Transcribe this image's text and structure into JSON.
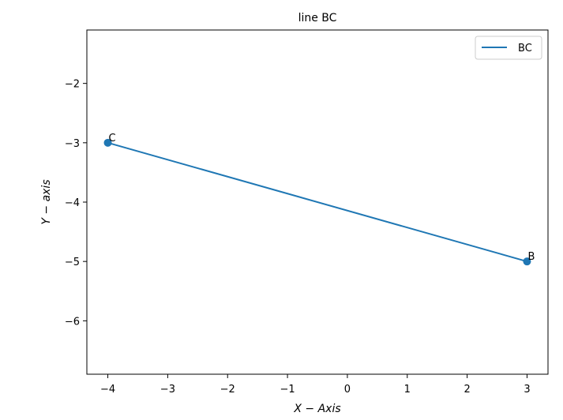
{
  "chart_data": {
    "type": "line",
    "title": "line BC",
    "xlabel": "X − Axis",
    "ylabel": "Y − axis",
    "xlim": [
      -4.35,
      3.35
    ],
    "ylim": [
      -6.9,
      -1.1
    ],
    "xticks": [
      -4,
      -3,
      -2,
      -1,
      0,
      1,
      2,
      3
    ],
    "xtick_labels": [
      "−4",
      "−3",
      "−2",
      "−1",
      "0",
      "1",
      "2",
      "3"
    ],
    "yticks": [
      -6,
      -5,
      -4,
      -3,
      -2
    ],
    "ytick_labels": [
      "−6",
      "−5",
      "−4",
      "−3",
      "−2"
    ],
    "grid": false,
    "legend_position": "top-right",
    "series": [
      {
        "name": "BC",
        "color": "#1f77b4",
        "x": [
          3,
          -4
        ],
        "y": [
          -5,
          -3
        ],
        "point_labels": [
          "B",
          "C"
        ]
      }
    ]
  }
}
